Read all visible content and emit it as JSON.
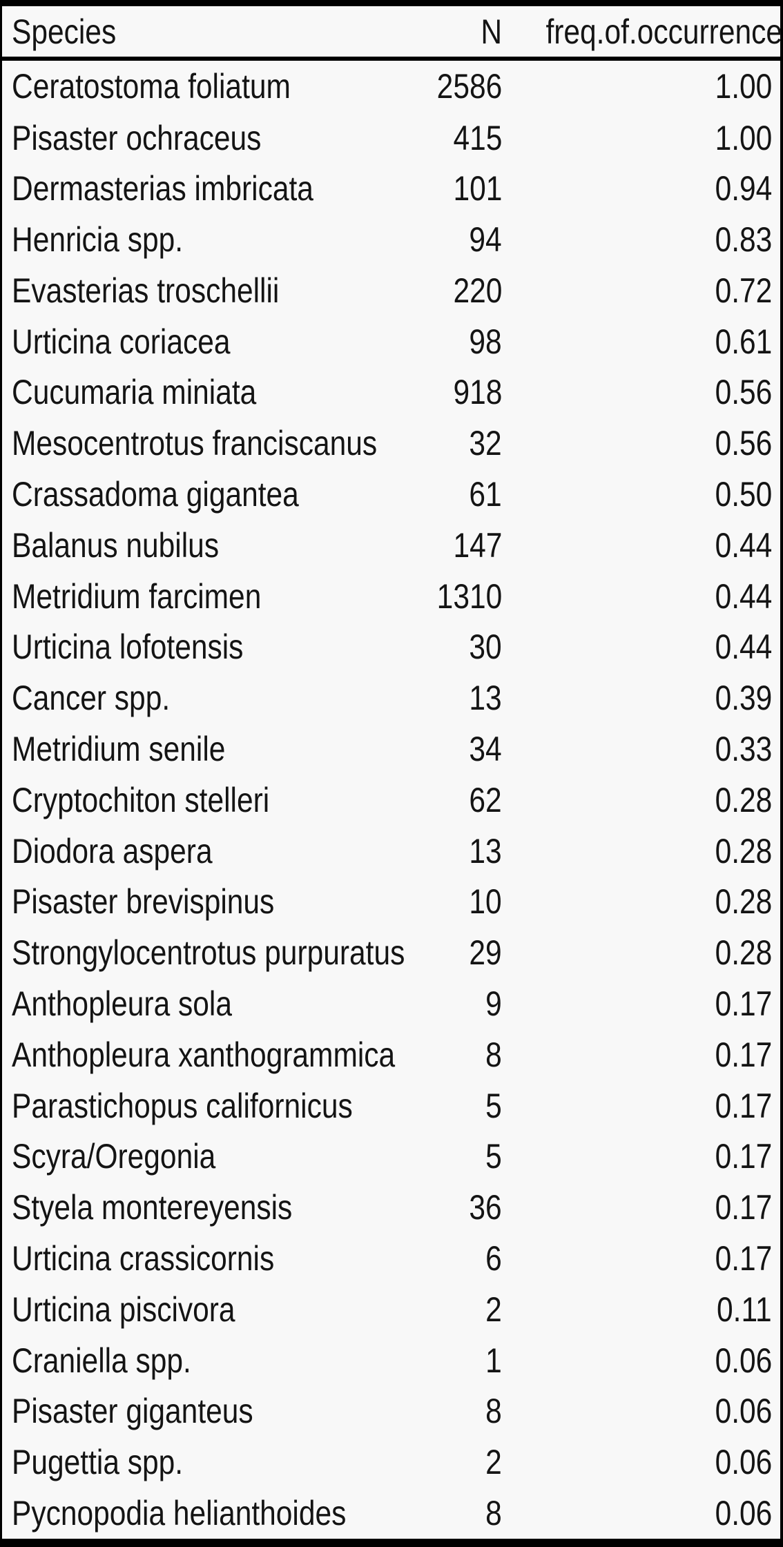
{
  "chart_data": {
    "type": "table",
    "title": "",
    "columns": [
      "Species",
      "N",
      "freq.of.occurrence"
    ],
    "rows": [
      [
        "Ceratostoma foliatum",
        "2586",
        "1.00"
      ],
      [
        "Pisaster ochraceus",
        "415",
        "1.00"
      ],
      [
        "Dermasterias imbricata",
        "101",
        "0.94"
      ],
      [
        "Henricia spp.",
        "94",
        "0.83"
      ],
      [
        "Evasterias troschellii",
        "220",
        "0.72"
      ],
      [
        "Urticina coriacea",
        "98",
        "0.61"
      ],
      [
        "Cucumaria miniata",
        "918",
        "0.56"
      ],
      [
        "Mesocentrotus franciscanus",
        "32",
        "0.56"
      ],
      [
        "Crassadoma gigantea",
        "61",
        "0.50"
      ],
      [
        "Balanus nubilus",
        "147",
        "0.44"
      ],
      [
        "Metridium farcimen",
        "1310",
        "0.44"
      ],
      [
        "Urticina lofotensis",
        "30",
        "0.44"
      ],
      [
        "Cancer spp.",
        "13",
        "0.39"
      ],
      [
        "Metridium senile",
        "34",
        "0.33"
      ],
      [
        "Cryptochiton stelleri",
        "62",
        "0.28"
      ],
      [
        "Diodora aspera",
        "13",
        "0.28"
      ],
      [
        "Pisaster brevispinus",
        "10",
        "0.28"
      ],
      [
        "Strongylocentrotus purpuratus",
        "29",
        "0.28"
      ],
      [
        "Anthopleura sola",
        "9",
        "0.17"
      ],
      [
        "Anthopleura xanthogrammica",
        "8",
        "0.17"
      ],
      [
        "Parastichopus californicus",
        "5",
        "0.17"
      ],
      [
        "Scyra/Oregonia",
        "5",
        "0.17"
      ],
      [
        "Styela montereyensis",
        "36",
        "0.17"
      ],
      [
        "Urticina crassicornis",
        "6",
        "0.17"
      ],
      [
        "Urticina piscivora",
        "2",
        "0.11"
      ],
      [
        "Craniella spp.",
        "1",
        "0.06"
      ],
      [
        "Pisaster giganteus",
        "8",
        "0.06"
      ],
      [
        "Pugettia spp.",
        "2",
        "0.06"
      ],
      [
        "Pycnopodia helianthoides",
        "8",
        "0.06"
      ]
    ]
  },
  "colors": {
    "border": "#000000",
    "text": "#141414",
    "background": "#f8f8f8"
  }
}
